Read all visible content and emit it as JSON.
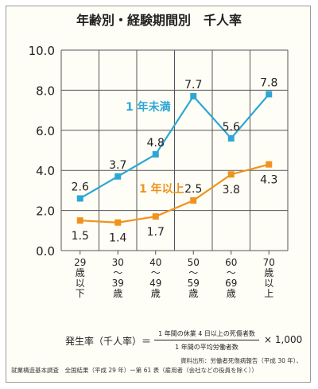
{
  "title": "年齢別・経験期間別　千人率",
  "chart_data": {
    "type": "line",
    "categories": [
      [
        "29",
        "歳",
        "以",
        "下"
      ],
      [
        "30",
        "〜",
        "39",
        "歳"
      ],
      [
        "40",
        "〜",
        "49",
        "歳"
      ],
      [
        "50",
        "〜",
        "59",
        "歳"
      ],
      [
        "60",
        "〜",
        "69",
        "歳"
      ],
      [
        "70",
        "歳",
        "以",
        "上"
      ]
    ],
    "ylim": [
      0,
      10
    ],
    "yticks": [
      "0.0",
      "2.0",
      "4.0",
      "6.0",
      "8.0",
      "10.0"
    ],
    "grid": true,
    "series": [
      {
        "name": "1 年未満",
        "color": "#2ea7d6",
        "values": [
          2.6,
          3.7,
          4.8,
          7.7,
          5.6,
          7.8
        ],
        "labels": [
          "2.6",
          "3.7",
          "4.8",
          "7.7",
          "5.6",
          "7.8"
        ]
      },
      {
        "name": "1 年以上",
        "color": "#f0921e",
        "values": [
          1.5,
          1.4,
          1.7,
          2.5,
          3.8,
          4.3
        ],
        "labels": [
          "1.5",
          "1.4",
          "1.7",
          "2.5",
          "3.8",
          "4.3"
        ]
      }
    ]
  },
  "formula": {
    "lhs": "発生率（千人率）＝",
    "numerator": "1 年間の休業 4 日以上の死傷者数",
    "denominator": "1 年間の平均労働者数",
    "multiplier": "× 1,000"
  },
  "source": {
    "line1": "資料出所：労働者死傷病報告（平成 30 年）、",
    "line2": "就業構造基本調査　全国結果（平成 29 年）ー第 61 表（雇用者（会社などの役員を除く））"
  }
}
